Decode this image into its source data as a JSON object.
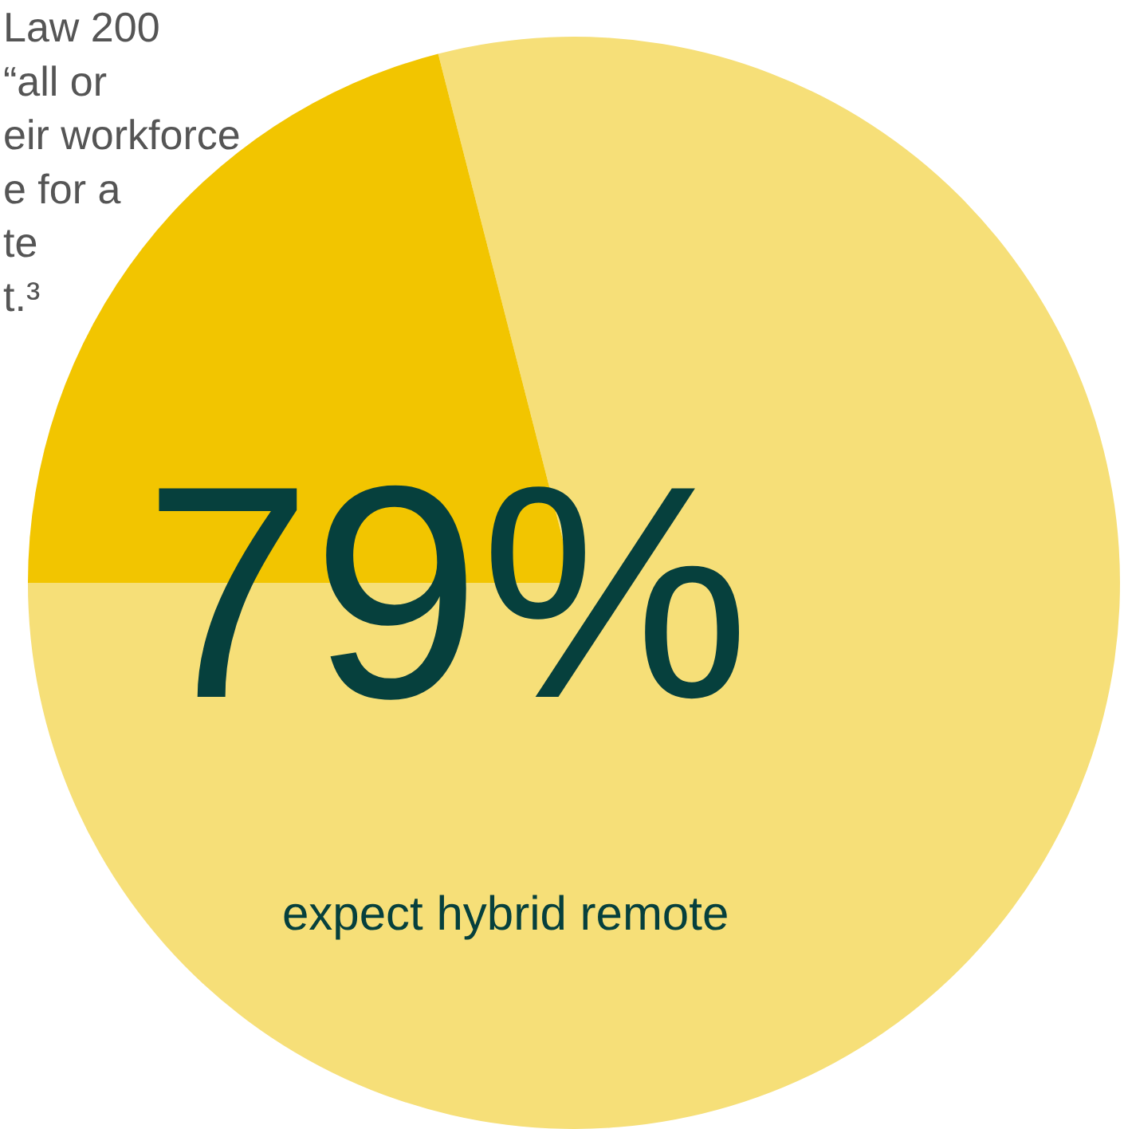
{
  "chart_data": {
    "type": "pie",
    "categories": [
      "expect hybrid remote",
      null
    ],
    "values": [
      79,
      21
    ],
    "colors": [
      "#f6df78",
      "#f2c500"
    ],
    "value_labels": [
      "79%",
      null
    ],
    "legend": false,
    "annotations": [
      "Law 200\n“all or\neir workforce\ne for a\nte\nt.³"
    ]
  }
}
